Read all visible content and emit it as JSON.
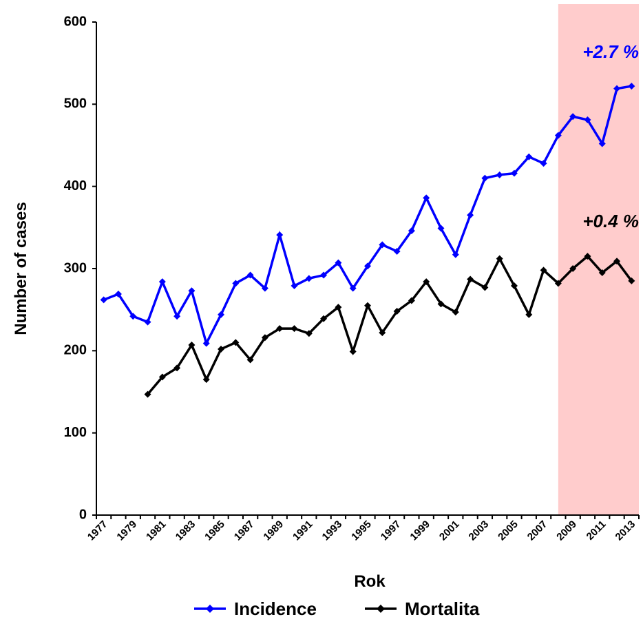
{
  "chart_data": {
    "type": "line",
    "y_label": "Number of cases",
    "x_label": "Rok",
    "categories": [
      "1977",
      null,
      "1979",
      null,
      "1981",
      null,
      "1983",
      null,
      "1985",
      null,
      "1987",
      null,
      "1989",
      null,
      "1991",
      null,
      "1993",
      null,
      "1995",
      null,
      "1997",
      null,
      "1999",
      null,
      "2001",
      null,
      "2003",
      null,
      "2005",
      null,
      "2007",
      null,
      "2009",
      null,
      "2011",
      null,
      "2013"
    ],
    "series": [
      {
        "name": "Incidence",
        "color": "#0000ff",
        "values": [
          262,
          269,
          242,
          235,
          284,
          242,
          273,
          209,
          244,
          282,
          292,
          276,
          341,
          279,
          288,
          292,
          307,
          276,
          303,
          329,
          321,
          346,
          386,
          349,
          317,
          365,
          410,
          414,
          416,
          436,
          428,
          462,
          485,
          481,
          452,
          519,
          522
        ]
      },
      {
        "name": "Mortalita",
        "color": "#000000",
        "values": [
          null,
          null,
          null,
          147,
          168,
          179,
          207,
          165,
          202,
          210,
          189,
          216,
          227,
          227,
          221,
          239,
          253,
          199,
          255,
          222,
          248,
          261,
          284,
          257,
          247,
          287,
          277,
          312,
          279,
          244,
          298,
          282,
          300,
          315,
          295,
          309,
          285
        ]
      }
    ],
    "annotations": [
      {
        "text": "+2.7 %",
        "color": "#0000ff"
      },
      {
        "text": "+0.4 %",
        "color": "#000000"
      }
    ],
    "shade": {
      "from_index": 31,
      "color": "#ffcccc"
    },
    "ylim": [
      0,
      600
    ],
    "yticks": [
      0,
      100,
      200,
      300,
      400,
      500,
      600
    ],
    "grid": false,
    "legend": "bottom"
  }
}
